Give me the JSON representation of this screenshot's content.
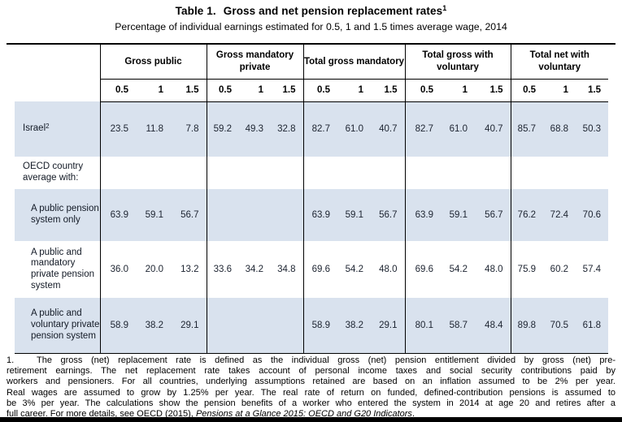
{
  "title": {
    "prefix": "Table 1.",
    "text": "Gross and net pension replacement rates",
    "superscript": "1"
  },
  "subtitle": "Percentage of individual earnings estimated for 0.5, 1 and 1.5 times average wage, 2014",
  "table": {
    "column_groups": [
      {
        "label": "Gross public",
        "subcolumns": [
          "0.5",
          "1",
          "1.5"
        ]
      },
      {
        "label": "Gross mandatory private",
        "subcolumns": [
          "0.5",
          "1",
          "1.5"
        ]
      },
      {
        "label": "Total gross mandatory",
        "subcolumns": [
          "0.5",
          "1",
          "1.5"
        ]
      },
      {
        "label": "Total gross with voluntary",
        "subcolumns": [
          "0.5",
          "1",
          "1.5"
        ]
      },
      {
        "label": "Total net with voluntary",
        "subcolumns": [
          "0.5",
          "1",
          "1.5"
        ]
      }
    ],
    "rows": [
      {
        "label": "Israel",
        "superscript": "2",
        "indent": false,
        "shaded": true,
        "values": [
          "23.5",
          "11.8",
          "7.8",
          "59.2",
          "49.3",
          "32.8",
          "82.7",
          "61.0",
          "40.7",
          "82.7",
          "61.0",
          "40.7",
          "85.7",
          "68.8",
          "50.3"
        ]
      },
      {
        "label": "OECD country average with:",
        "superscript": "",
        "indent": false,
        "shaded": false,
        "values": [
          "",
          "",
          "",
          "",
          "",
          "",
          "",
          "",
          "",
          "",
          "",
          "",
          "",
          "",
          ""
        ]
      },
      {
        "label": "A public pension system only",
        "superscript": "",
        "indent": true,
        "shaded": true,
        "values": [
          "63.9",
          "59.1",
          "56.7",
          "",
          "",
          "",
          "63.9",
          "59.1",
          "56.7",
          "63.9",
          "59.1",
          "56.7",
          "76.2",
          "72.4",
          "70.6"
        ]
      },
      {
        "label": "A public and mandatory private pension system",
        "superscript": "",
        "indent": true,
        "shaded": false,
        "values": [
          "36.0",
          "20.0",
          "13.2",
          "33.6",
          "34.2",
          "34.8",
          "69.6",
          "54.2",
          "48.0",
          "69.6",
          "54.2",
          "48.0",
          "75.9",
          "60.2",
          "57.4"
        ]
      },
      {
        "label": "A public and voluntary private pension system",
        "superscript": "",
        "indent": true,
        "shaded": true,
        "values": [
          "58.9",
          "38.2",
          "29.1",
          "",
          "",
          "",
          "58.9",
          "38.2",
          "29.1",
          "80.1",
          "58.7",
          "48.4",
          "89.8",
          "70.5",
          "61.8"
        ]
      }
    ]
  },
  "footnote": {
    "marker": "1.",
    "lines": [
      "The gross (net) replacement rate is defined as the individual gross (net) pension entitlement divided by gross (net) pre-",
      "retirement earnings. The net replacement rate takes account of personal income taxes and social security contributions paid by",
      "workers and pensioners. For all countries, underlying assumptions retained are based on an inflation assumed to be 2% per year.",
      "Real wages are assumed to grow by 1.25% per year. The real rate of return on funded, defined-contribution pensions is assumed to",
      "be 3% per year. The calculations show the pension benefits of a worker who entered the system in 2014 at age 20 and retires after a"
    ],
    "last_line": {
      "prefix": "full career. For more details, see OECD (2015), ",
      "italic": "Pensions at a Glance 2015: OECD and G20 Indicators",
      "suffix": "."
    }
  },
  "colors": {
    "row_shade": "#d9e2ee",
    "border": "#000000",
    "text": "#1c2330"
  }
}
